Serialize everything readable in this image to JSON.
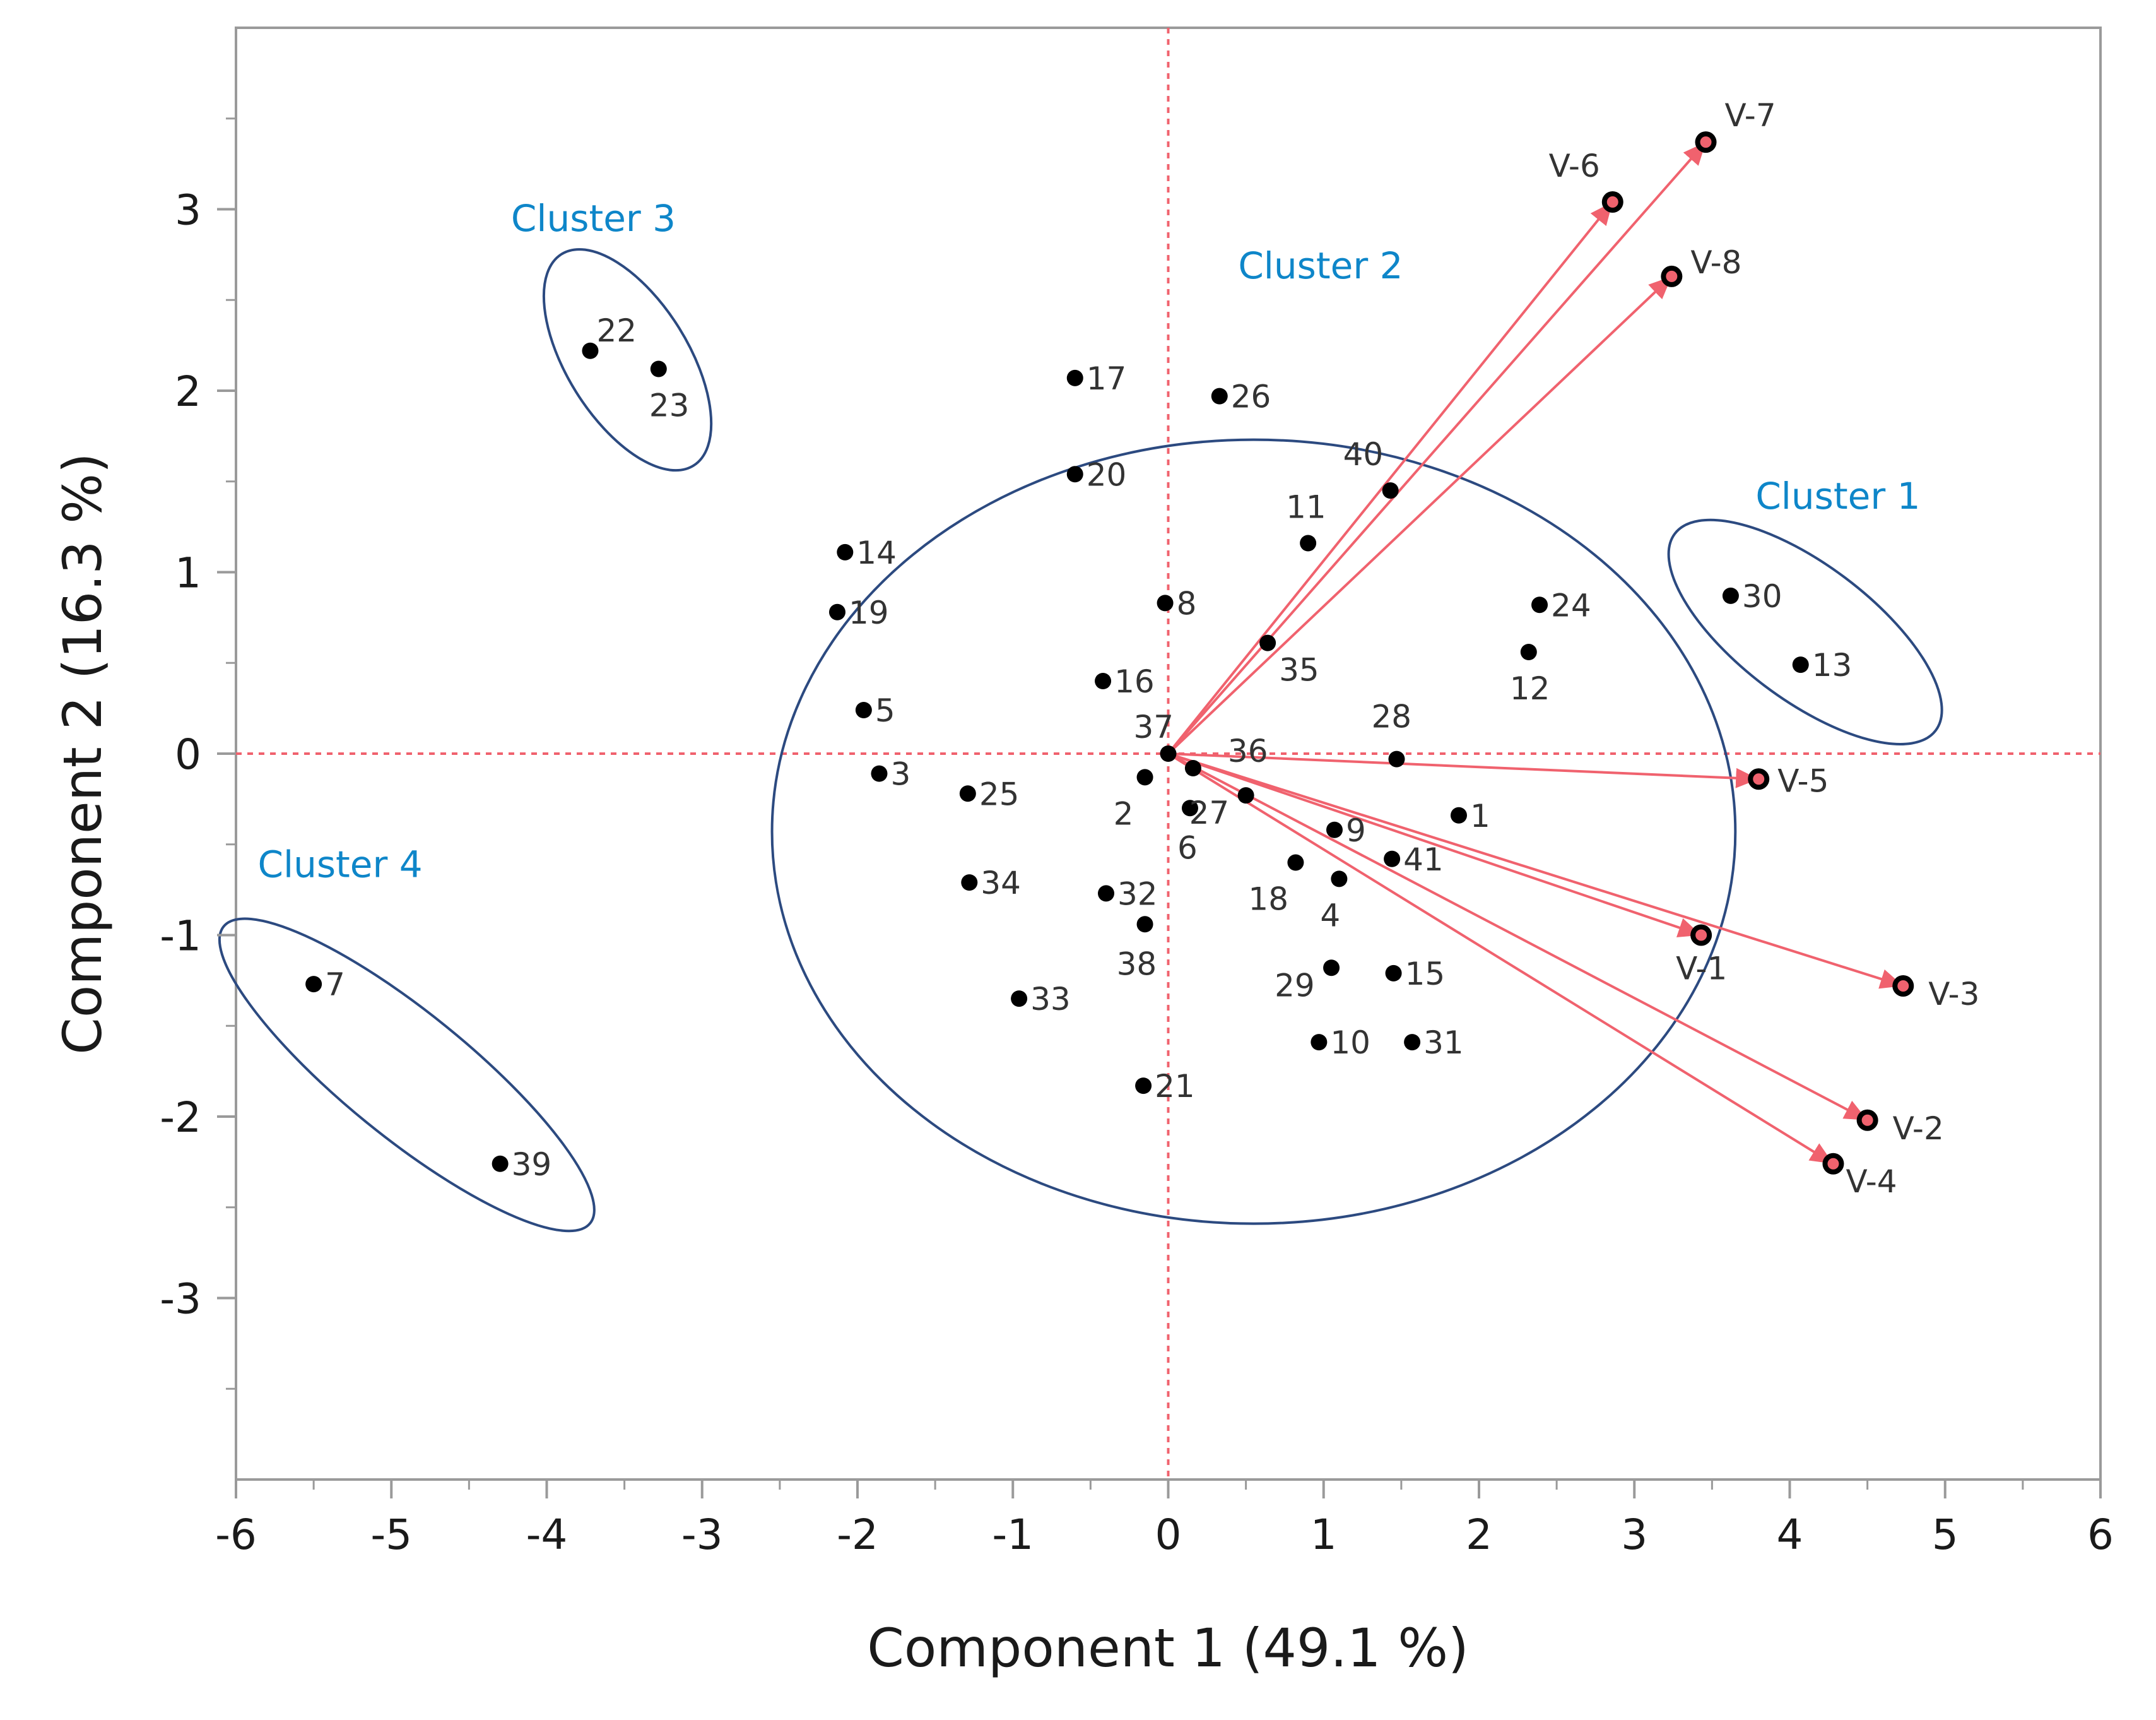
{
  "chart_data": {
    "type": "scatter",
    "subtype": "pca-biplot",
    "xlabel": "Component 1  (49.1 %)",
    "ylabel": "Component 2  (16.3 %)",
    "xlim": [
      -6,
      6
    ],
    "ylim": [
      -4,
      4
    ],
    "x_ticks": [
      -6,
      -5,
      -4,
      -3,
      -2,
      -1,
      0,
      1,
      2,
      3,
      4,
      5,
      6
    ],
    "y_ticks": [
      -3,
      -2,
      -1,
      0,
      1,
      2,
      3
    ],
    "grid": false,
    "colors": {
      "points": "#000000",
      "vectors": "#f0626e",
      "reference_lines": "#f0626e",
      "clusters": "#2c4a80",
      "cluster_labels": "#0e86c9"
    },
    "points": [
      {
        "label": "1",
        "x": 1.87,
        "y": -0.34
      },
      {
        "label": "2",
        "x": -0.15,
        "y": -0.13
      },
      {
        "label": "3",
        "x": -1.86,
        "y": -0.11
      },
      {
        "label": "4",
        "x": 1.1,
        "y": -0.69
      },
      {
        "label": "5",
        "x": -1.96,
        "y": 0.24
      },
      {
        "label": "6",
        "x": 0.14,
        "y": -0.3
      },
      {
        "label": "7",
        "x": -5.5,
        "y": -1.27
      },
      {
        "label": "8",
        "x": -0.02,
        "y": 0.83
      },
      {
        "label": "9",
        "x": 1.07,
        "y": -0.42
      },
      {
        "label": "10",
        "x": 0.97,
        "y": -1.59
      },
      {
        "label": "11",
        "x": 0.9,
        "y": 1.16
      },
      {
        "label": "12",
        "x": 2.32,
        "y": 0.56
      },
      {
        "label": "13",
        "x": 4.07,
        "y": 0.49
      },
      {
        "label": "14",
        "x": -2.08,
        "y": 1.11
      },
      {
        "label": "15",
        "x": 1.45,
        "y": -1.21
      },
      {
        "label": "16",
        "x": -0.42,
        "y": 0.4
      },
      {
        "label": "17",
        "x": -0.6,
        "y": 2.07
      },
      {
        "label": "18",
        "x": 0.82,
        "y": -0.6
      },
      {
        "label": "19",
        "x": -2.13,
        "y": 0.78
      },
      {
        "label": "20",
        "x": -0.6,
        "y": 1.54
      },
      {
        "label": "21",
        "x": -0.16,
        "y": -1.83
      },
      {
        "label": "22",
        "x": -3.72,
        "y": 2.22
      },
      {
        "label": "23",
        "x": -3.28,
        "y": 2.12
      },
      {
        "label": "24",
        "x": 2.39,
        "y": 0.82
      },
      {
        "label": "25",
        "x": -1.29,
        "y": -0.22
      },
      {
        "label": "26",
        "x": 0.33,
        "y": 1.97
      },
      {
        "label": "27",
        "x": 0.5,
        "y": -0.23
      },
      {
        "label": "28",
        "x": 1.47,
        "y": -0.03
      },
      {
        "label": "29",
        "x": 1.05,
        "y": -1.18
      },
      {
        "label": "30",
        "x": 3.62,
        "y": 0.87
      },
      {
        "label": "31",
        "x": 1.57,
        "y": -1.59
      },
      {
        "label": "32",
        "x": -0.4,
        "y": -0.77
      },
      {
        "label": "33",
        "x": -0.96,
        "y": -1.35
      },
      {
        "label": "34",
        "x": -1.28,
        "y": -0.71
      },
      {
        "label": "35",
        "x": 0.64,
        "y": 0.61
      },
      {
        "label": "36",
        "x": 0.16,
        "y": -0.08
      },
      {
        "label": "37",
        "x": 0.0,
        "y": 0.0
      },
      {
        "label": "38",
        "x": -0.15,
        "y": -0.94
      },
      {
        "label": "39",
        "x": -4.3,
        "y": -2.26
      },
      {
        "label": "40",
        "x": 1.43,
        "y": 1.45
      },
      {
        "label": "41",
        "x": 1.44,
        "y": -0.58
      }
    ],
    "vectors": [
      {
        "label": "V-1",
        "x": 3.43,
        "y": -1.0
      },
      {
        "label": "V-2",
        "x": 4.5,
        "y": -2.02
      },
      {
        "label": "V-3",
        "x": 4.73,
        "y": -1.28
      },
      {
        "label": "V-4",
        "x": 4.28,
        "y": -2.26
      },
      {
        "label": "V-5",
        "x": 3.8,
        "y": -0.14
      },
      {
        "label": "V-6",
        "x": 2.86,
        "y": 3.04
      },
      {
        "label": "V-7",
        "x": 3.46,
        "y": 3.37
      },
      {
        "label": "V-8",
        "x": 3.24,
        "y": 2.63
      }
    ],
    "clusters": [
      {
        "label": "Cluster 1",
        "center": [
          4.1,
          0.67
        ],
        "radii": [
          0.97,
          0.4
        ],
        "angle_deg": -37,
        "members": [
          "30",
          "13"
        ]
      },
      {
        "label": "Cluster 2",
        "center": [
          0.55,
          -0.43
        ],
        "radii": [
          3.1,
          2.16
        ],
        "angle_deg": 0,
        "members": [
          "1",
          "2",
          "3",
          "4",
          "5",
          "6",
          "8",
          "9",
          "10",
          "11",
          "12",
          "14",
          "15",
          "16",
          "17",
          "18",
          "19",
          "20",
          "21",
          "24",
          "25",
          "26",
          "27",
          "28",
          "29",
          "31",
          "32",
          "33",
          "34",
          "35",
          "36",
          "37",
          "38",
          "40",
          "41"
        ]
      },
      {
        "label": "Cluster 3",
        "center": [
          -3.48,
          2.17
        ],
        "radii": [
          0.74,
          0.36
        ],
        "angle_deg": -58,
        "members": [
          "22",
          "23"
        ]
      },
      {
        "label": "Cluster 4",
        "center": [
          -4.9,
          -1.77
        ],
        "radii": [
          1.4,
          0.37
        ],
        "angle_deg": -39,
        "members": [
          "7",
          "39"
        ]
      }
    ]
  }
}
